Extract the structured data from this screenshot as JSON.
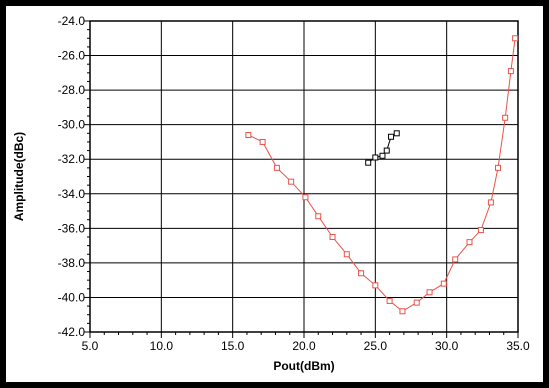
{
  "chart_data": {
    "type": "line",
    "title": "",
    "xlabel": "Pout(dBm)",
    "ylabel": "Amplitude(dBc)",
    "xlim": [
      5,
      35
    ],
    "ylim": [
      -42,
      -24
    ],
    "x_ticks": [
      "5.0",
      "10.0",
      "15.0",
      "20.0",
      "25.0",
      "30.0",
      "35.0"
    ],
    "y_ticks": [
      "-24.0",
      "-26.0",
      "-28.0",
      "-30.0",
      "-32.0",
      "-34.0",
      "-36.0",
      "-38.0",
      "-40.0",
      "-42.0"
    ],
    "grid": true,
    "legend": "none",
    "series": [
      {
        "color": "#e8534a",
        "marker": "square",
        "points": [
          [
            16.1,
            -30.6
          ],
          [
            17.1,
            -31.0
          ],
          [
            18.1,
            -32.5
          ],
          [
            19.1,
            -33.3
          ],
          [
            20.1,
            -34.2
          ],
          [
            21.0,
            -35.3
          ],
          [
            22.0,
            -36.5
          ],
          [
            23.0,
            -37.5
          ],
          [
            24.0,
            -38.6
          ],
          [
            25.0,
            -39.3
          ],
          [
            26.0,
            -40.2
          ],
          [
            26.9,
            -40.8
          ],
          [
            27.9,
            -40.3
          ],
          [
            28.8,
            -39.7
          ],
          [
            29.8,
            -39.2
          ],
          [
            30.6,
            -37.8
          ],
          [
            31.6,
            -36.8
          ],
          [
            32.4,
            -36.1
          ],
          [
            33.1,
            -34.5
          ],
          [
            33.6,
            -32.5
          ],
          [
            34.1,
            -29.6
          ],
          [
            34.5,
            -26.9
          ],
          [
            34.8,
            -25.0
          ]
        ]
      },
      {
        "color": "#000000",
        "marker": "square",
        "points": [
          [
            24.5,
            -32.2
          ],
          [
            25.0,
            -31.9
          ],
          [
            25.5,
            -31.8
          ],
          [
            25.8,
            -31.5
          ],
          [
            26.1,
            -30.7
          ],
          [
            26.5,
            -30.5
          ]
        ]
      }
    ]
  }
}
